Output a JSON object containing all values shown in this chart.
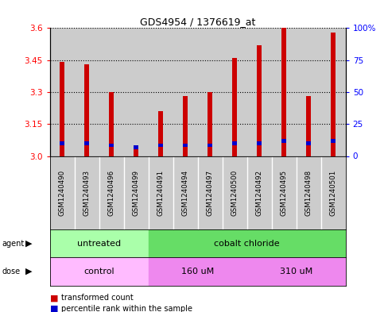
{
  "title": "GDS4954 / 1376619_at",
  "samples": [
    "GSM1240490",
    "GSM1240493",
    "GSM1240496",
    "GSM1240499",
    "GSM1240491",
    "GSM1240494",
    "GSM1240497",
    "GSM1240500",
    "GSM1240492",
    "GSM1240495",
    "GSM1240498",
    "GSM1240501"
  ],
  "red_values": [
    3.44,
    3.43,
    3.3,
    3.05,
    3.21,
    3.28,
    3.3,
    3.46,
    3.52,
    3.6,
    3.28,
    3.58
  ],
  "blue_values": [
    3.06,
    3.06,
    3.05,
    3.04,
    3.05,
    3.05,
    3.05,
    3.06,
    3.06,
    3.07,
    3.06,
    3.07
  ],
  "ymin": 3.0,
  "ymax": 3.6,
  "yticks_left": [
    3.0,
    3.15,
    3.3,
    3.45,
    3.6
  ],
  "yticks_right": [
    0,
    25,
    50,
    75,
    100
  ],
  "yticks_right_labels": [
    "0",
    "25",
    "50",
    "75",
    "100%"
  ],
  "agent_labels": [
    {
      "text": "untreated",
      "start": 0,
      "end": 3
    },
    {
      "text": "cobalt chloride",
      "start": 4,
      "end": 11
    }
  ],
  "dose_labels": [
    {
      "text": "control",
      "start": 0,
      "end": 3
    },
    {
      "text": "160 uM",
      "start": 4,
      "end": 7
    },
    {
      "text": "310 uM",
      "start": 8,
      "end": 11
    }
  ],
  "agent_colors": [
    "#aaffaa",
    "#66dd66"
  ],
  "dose_colors": [
    "#ffbbff",
    "#ee88ee",
    "#ee88ee"
  ],
  "bar_color": "#cc0000",
  "blue_color": "#0000cc",
  "sample_bg": "#cccccc",
  "plot_bg": "#ffffff",
  "legend_items": [
    "transformed count",
    "percentile rank within the sample"
  ]
}
